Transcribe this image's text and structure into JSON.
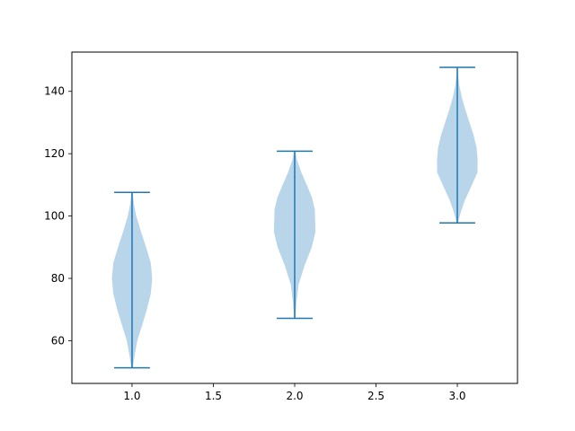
{
  "chart_data": {
    "type": "violin",
    "title": "",
    "xlabel": "",
    "ylabel": "",
    "xlim": [
      0.63,
      3.37
    ],
    "ylim": [
      46.3,
      152.6
    ],
    "x_ticks": [
      1.0,
      1.5,
      2.0,
      2.5,
      3.0
    ],
    "x_tick_labels": [
      "1.0",
      "1.5",
      "2.0",
      "2.5",
      "3.0"
    ],
    "y_ticks": [
      60,
      80,
      100,
      120,
      140
    ],
    "y_tick_labels": [
      "60",
      "80",
      "100",
      "120",
      "140"
    ],
    "grid": false,
    "colors": {
      "body": "#b8d5e9",
      "lines": "#1f77b4"
    },
    "violins": [
      {
        "position": 1,
        "min": 51.3,
        "max": 107.6,
        "profile": [
          [
            51.3,
            0.004
          ],
          [
            55,
            0.015
          ],
          [
            60,
            0.032
          ],
          [
            65,
            0.062
          ],
          [
            70,
            0.091
          ],
          [
            75,
            0.115
          ],
          [
            80,
            0.124
          ],
          [
            85,
            0.115
          ],
          [
            90,
            0.086
          ],
          [
            95,
            0.055
          ],
          [
            100,
            0.026
          ],
          [
            104,
            0.011
          ],
          [
            107.6,
            0.004
          ]
        ]
      },
      {
        "position": 2,
        "min": 67.2,
        "max": 120.8,
        "profile": [
          [
            67.2,
            0.004
          ],
          [
            72,
            0.01
          ],
          [
            78,
            0.024
          ],
          [
            84,
            0.06
          ],
          [
            90,
            0.105
          ],
          [
            95,
            0.128
          ],
          [
            98,
            0.126
          ],
          [
            102,
            0.124
          ],
          [
            106,
            0.106
          ],
          [
            110,
            0.074
          ],
          [
            114,
            0.041
          ],
          [
            118,
            0.014
          ],
          [
            120.8,
            0.004
          ]
        ]
      },
      {
        "position": 3,
        "min": 97.8,
        "max": 147.7,
        "profile": [
          [
            97.8,
            0.004
          ],
          [
            101,
            0.02
          ],
          [
            105,
            0.046
          ],
          [
            110,
            0.09
          ],
          [
            114,
            0.124
          ],
          [
            118,
            0.125
          ],
          [
            122,
            0.118
          ],
          [
            126,
            0.1
          ],
          [
            130,
            0.075
          ],
          [
            134,
            0.05
          ],
          [
            138,
            0.028
          ],
          [
            142,
            0.012
          ],
          [
            145,
            0.006
          ],
          [
            147.7,
            0.003
          ]
        ]
      }
    ]
  }
}
